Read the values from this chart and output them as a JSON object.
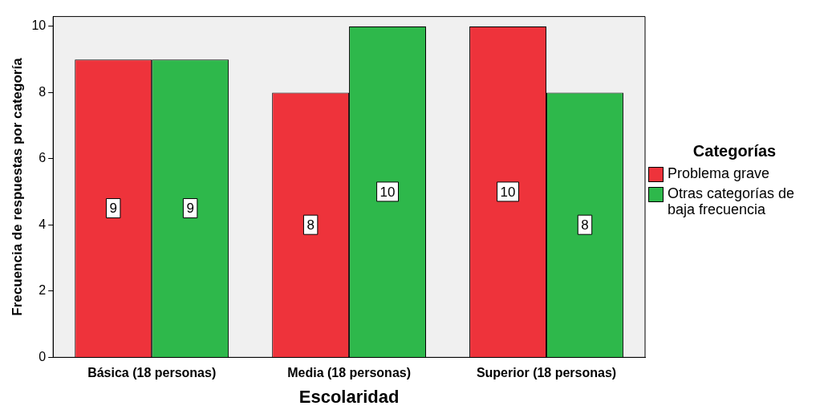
{
  "chart_data": {
    "type": "bar",
    "xlabel": "Escolaridad",
    "ylabel": "Frecuencia de respuestas por categoría",
    "legend_title": "Categorías",
    "categories": [
      "Básica (18 personas)",
      "Media (18 personas)",
      "Superior (18 personas)"
    ],
    "series": [
      {
        "name": "Problema grave",
        "color": "#ee333b",
        "values": [
          9,
          8,
          10
        ]
      },
      {
        "name": "Otras categorías de baja frecuencia",
        "color": "#2eb84b",
        "values": [
          9,
          10,
          8
        ]
      }
    ],
    "ylim": [
      0,
      10.3
    ],
    "yticks": [
      0,
      2,
      4,
      6,
      8,
      10
    ],
    "grid": false,
    "legend": "right",
    "data_labels": true
  }
}
